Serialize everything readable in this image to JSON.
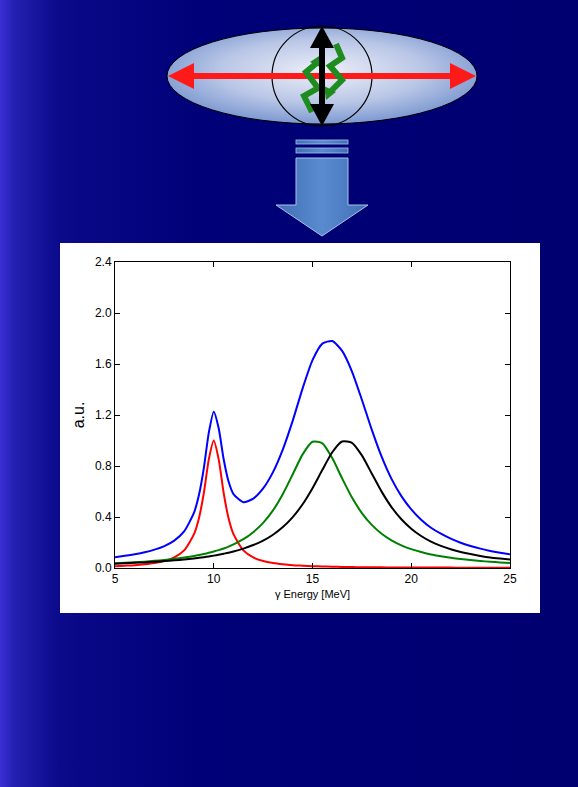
{
  "chart_data": {
    "type": "line",
    "x_label": "γ Energy [MeV]",
    "y_label": "a.u.",
    "x": [
      5,
      5.5,
      6,
      6.5,
      7,
      7.5,
      8,
      8.5,
      9,
      9.25,
      9.5,
      9.75,
      10,
      10.25,
      10.5,
      10.75,
      11,
      11.5,
      12,
      12.5,
      13,
      13.5,
      14,
      14.5,
      15,
      15.5,
      16,
      16.5,
      17,
      17.5,
      18,
      18.5,
      19,
      19.5,
      20,
      20.5,
      21,
      21.5,
      22,
      22.5,
      23,
      23.5,
      24,
      24.5,
      25
    ],
    "series": [
      {
        "color": "#ff0000",
        "values": [
          0.014,
          0.018,
          0.022,
          0.029,
          0.039,
          0.055,
          0.083,
          0.138,
          0.265,
          0.39,
          0.59,
          0.852,
          1.0,
          0.852,
          0.59,
          0.39,
          0.265,
          0.138,
          0.083,
          0.055,
          0.039,
          0.029,
          0.022,
          0.018,
          0.014,
          0.012,
          0.01,
          0.008,
          0.007,
          0.006,
          0.006,
          0.005,
          0.004,
          0.004,
          0.004,
          0.003,
          0.003,
          0.003,
          0.003,
          0.002,
          0.002,
          0.002,
          0.002,
          0.002,
          0.002
        ]
      },
      {
        "color": "#008000",
        "values": [
          0.037,
          0.041,
          0.045,
          0.05,
          0.056,
          0.063,
          0.072,
          0.082,
          0.094,
          0.102,
          0.11,
          0.119,
          0.129,
          0.14,
          0.153,
          0.168,
          0.185,
          0.226,
          0.281,
          0.354,
          0.452,
          0.581,
          0.735,
          0.891,
          0.99,
          0.978,
          0.862,
          0.703,
          0.552,
          0.431,
          0.338,
          0.269,
          0.217,
          0.178,
          0.148,
          0.125,
          0.106,
          0.092,
          0.08,
          0.07,
          0.062,
          0.055,
          0.049,
          0.044,
          0.04
        ]
      },
      {
        "color": "#000000",
        "values": [
          0.034,
          0.037,
          0.041,
          0.044,
          0.049,
          0.054,
          0.06,
          0.067,
          0.075,
          0.08,
          0.085,
          0.091,
          0.097,
          0.104,
          0.112,
          0.12,
          0.13,
          0.152,
          0.18,
          0.215,
          0.261,
          0.321,
          0.399,
          0.5,
          0.626,
          0.77,
          0.908,
          0.992,
          0.982,
          0.883,
          0.741,
          0.599,
          0.478,
          0.382,
          0.308,
          0.251,
          0.207,
          0.174,
          0.147,
          0.126,
          0.109,
          0.095,
          0.083,
          0.074,
          0.066
        ]
      },
      {
        "color": "#0000ff",
        "values": [
          0.085,
          0.096,
          0.108,
          0.123,
          0.144,
          0.172,
          0.215,
          0.287,
          0.434,
          0.572,
          0.785,
          1.062,
          1.226,
          1.096,
          0.855,
          0.678,
          0.58,
          0.516,
          0.544,
          0.624,
          0.752,
          0.931,
          1.156,
          1.409,
          1.63,
          1.76,
          1.78,
          1.703,
          1.541,
          1.32,
          1.085,
          0.873,
          0.699,
          0.564,
          0.46,
          0.379,
          0.316,
          0.269,
          0.23,
          0.198,
          0.173,
          0.152,
          0.134,
          0.12,
          0.108
        ]
      }
    ],
    "xlim": [
      5,
      25
    ],
    "xticks": [
      5,
      10,
      15,
      20,
      25
    ],
    "ylim": [
      0,
      2.4
    ],
    "yticks": [
      {
        "value": 0,
        "label": "0.0"
      },
      0.4,
      0.8,
      1.2,
      1.6,
      {
        "value": 2,
        "label": "2.0"
      },
      2.4
    ],
    "grid": false
  }
}
